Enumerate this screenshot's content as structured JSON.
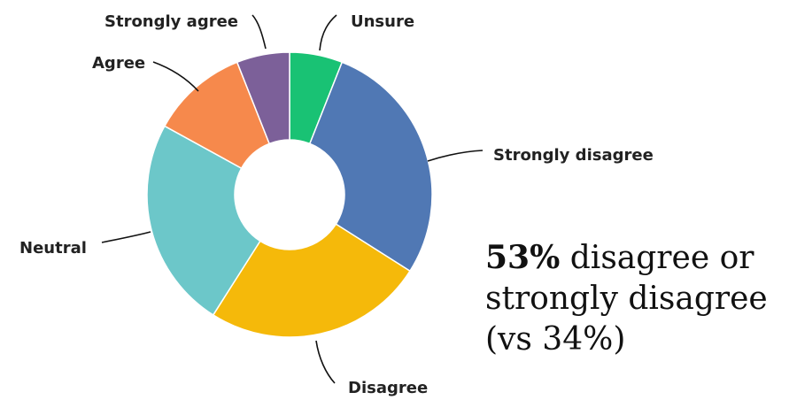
{
  "chart_data": {
    "type": "pie",
    "donut": true,
    "categories": [
      "Unsure",
      "Strongly disagree",
      "Disagree",
      "Neutral",
      "Agree",
      "Strongly agree"
    ],
    "values": [
      6,
      28,
      25,
      24,
      11,
      6
    ],
    "colors": [
      "#19c274",
      "#5078b4",
      "#f5b90a",
      "#6cc7c9",
      "#f6894c",
      "#7c6099"
    ],
    "legend": "none",
    "title": ""
  },
  "callout": {
    "value": "53%",
    "text_line1": "disagree or",
    "text_line2": "strongly disagree",
    "text_line3": "(vs 34%)"
  }
}
